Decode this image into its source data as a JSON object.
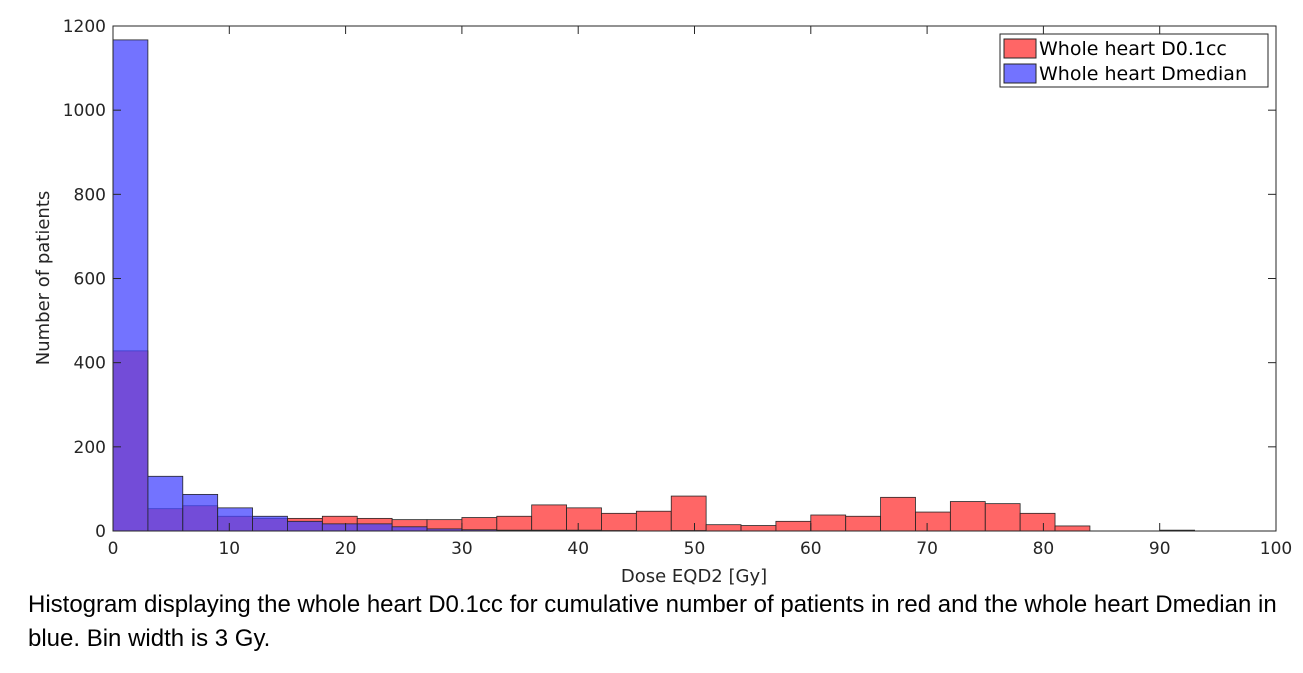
{
  "chart_data": {
    "type": "bar",
    "xlabel": "Dose EQD2 [Gy]",
    "ylabel": "Number of patients",
    "xlim": [
      0,
      100
    ],
    "ylim": [
      0,
      1200
    ],
    "xticks": [
      0,
      10,
      20,
      30,
      40,
      50,
      60,
      70,
      80,
      90,
      100
    ],
    "yticks": [
      0,
      200,
      400,
      600,
      800,
      1000,
      1200
    ],
    "bin_width": 3,
    "bin_edges_start": 0,
    "legend_position": "top-right",
    "series": [
      {
        "name": "Whole heart D0.1cc",
        "color": "#ff3333",
        "values": [
          428,
          53,
          60,
          35,
          30,
          30,
          35,
          30,
          27,
          27,
          32,
          35,
          62,
          55,
          42,
          47,
          83,
          15,
          13,
          23,
          38,
          35,
          80,
          45,
          70,
          65,
          42,
          12,
          0,
          0,
          0,
          0,
          0,
          0
        ]
      },
      {
        "name": "Whole heart Dmedian",
        "color": "#4444ff",
        "values": [
          1167,
          130,
          87,
          55,
          35,
          23,
          17,
          17,
          10,
          5,
          3,
          2,
          2,
          2,
          1,
          0,
          1,
          0,
          0,
          0,
          0,
          0,
          0,
          0,
          0,
          0,
          0,
          0,
          0,
          0,
          2,
          0,
          0,
          0
        ]
      }
    ]
  },
  "caption": "Histogram displaying the whole heart D0.1cc for cumulative number of patients in red and the whole heart Dmedian in blue. Bin width is 3 Gy."
}
